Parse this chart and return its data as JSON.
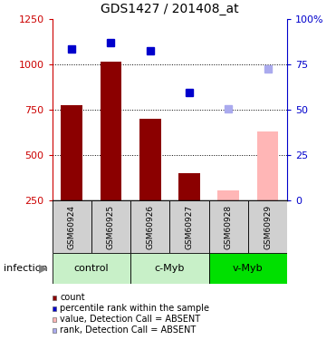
{
  "title": "GDS1427 / 201408_at",
  "samples": [
    "GSM60924",
    "GSM60925",
    "GSM60926",
    "GSM60927",
    "GSM60928",
    "GSM60929"
  ],
  "bar_values": [
    775,
    1015,
    700,
    400,
    null,
    null
  ],
  "bar_color": "#8b0000",
  "absent_bar_values": [
    null,
    null,
    null,
    null,
    305,
    630
  ],
  "absent_bar_color": "#ffb6b6",
  "dot_values": [
    1085,
    1120,
    1075,
    845,
    null,
    null
  ],
  "dot_color": "#0000cc",
  "absent_dot_values": [
    null,
    null,
    null,
    null,
    755,
    975
  ],
  "absent_dot_color": "#aaaaee",
  "ylim": [
    250,
    1250
  ],
  "y2lim": [
    0,
    100
  ],
  "yticks": [
    250,
    500,
    750,
    1000,
    1250
  ],
  "y2ticks": [
    0,
    25,
    50,
    75,
    100
  ],
  "dotted_lines": [
    500,
    750,
    1000
  ],
  "group_info": [
    {
      "i0": 0,
      "i1": 1,
      "label": "control",
      "color": "#c8f0c8"
    },
    {
      "i0": 2,
      "i1": 3,
      "label": "c-Myb",
      "color": "#c8f0c8"
    },
    {
      "i0": 4,
      "i1": 5,
      "label": "v-Myb",
      "color": "#00e000"
    }
  ],
  "infection_label": "infection",
  "legend_items": [
    {
      "color": "#8b0000",
      "label": "count"
    },
    {
      "color": "#0000cc",
      "label": "percentile rank within the sample"
    },
    {
      "color": "#ffb6b6",
      "label": "value, Detection Call = ABSENT"
    },
    {
      "color": "#aaaaee",
      "label": "rank, Detection Call = ABSENT"
    }
  ]
}
